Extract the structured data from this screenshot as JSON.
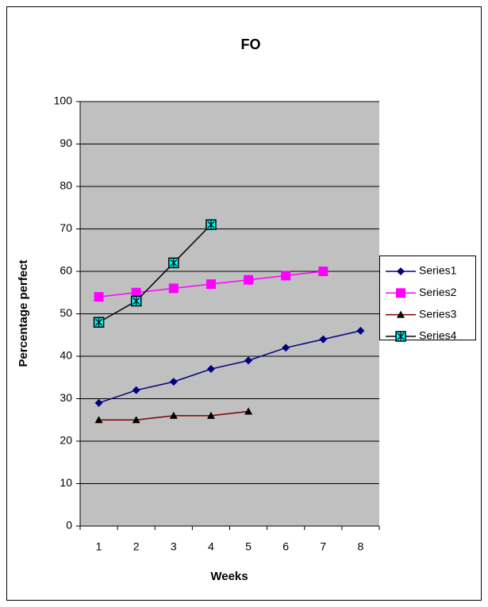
{
  "chart_data": {
    "type": "line",
    "title": "FO",
    "x_label": "Weeks",
    "y_label": "Percentage perfect",
    "categories": [
      "1",
      "2",
      "3",
      "4",
      "5",
      "6",
      "7",
      "8"
    ],
    "series": [
      {
        "name": "Series1",
        "color": "#000080",
        "marker": "diamond",
        "values": [
          29,
          32,
          34,
          37,
          39,
          42,
          44,
          46
        ]
      },
      {
        "name": "Series2",
        "color": "#ff00ff",
        "marker": "square",
        "values": [
          54,
          55,
          56,
          57,
          58,
          59,
          60,
          null
        ]
      },
      {
        "name": "Series3",
        "color": "#800000",
        "marker": "triangle",
        "values": [
          25,
          25,
          26,
          26,
          27,
          null,
          null,
          null
        ]
      },
      {
        "name": "Series4",
        "color": "#000000",
        "marker": "asterisk",
        "values": [
          48,
          53,
          62,
          71,
          null,
          null,
          null,
          null
        ]
      }
    ],
    "ylim": [
      0,
      100
    ],
    "yticks": [
      0,
      10,
      20,
      30,
      40,
      50,
      60,
      70,
      80,
      90,
      100
    ],
    "grid": true,
    "legend": "right"
  }
}
